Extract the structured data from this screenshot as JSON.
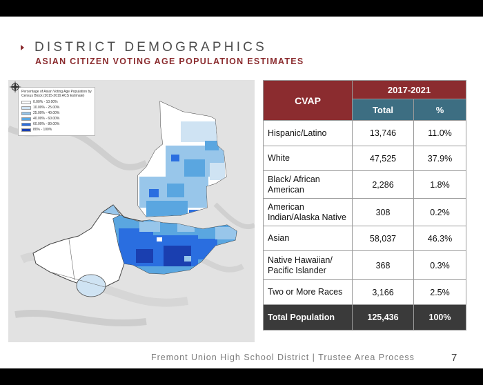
{
  "slide": {
    "title": "DISTRICT DEMOGRAPHICS",
    "subtitle": "ASIAN CITIZEN VOTING AGE POPULATION ESTIMATES"
  },
  "map": {
    "legend_title": "Percentage of Asian Voting Age Population by Census Block (2015-2019 ACS Estimate)",
    "legend_items": [
      {
        "label": "0.00% - 10.00%",
        "color": "#ffffff"
      },
      {
        "label": "10.00% - 25.00%",
        "color": "#cfe3f3"
      },
      {
        "label": "25.00% - 40.00%",
        "color": "#98c6ea"
      },
      {
        "label": "40.00% - 60.00%",
        "color": "#5aa6e0"
      },
      {
        "label": "60.00% - 80.00%",
        "color": "#2a6ee0"
      },
      {
        "label": "80% - 100%",
        "color": "#1a3fb0"
      }
    ]
  },
  "table": {
    "header": {
      "group": "CVAP",
      "period": "2017-2021",
      "total": "Total",
      "pct": "%"
    },
    "rows": [
      {
        "group": "Hispanic/Latino",
        "total": "13,746",
        "pct": "11.0%"
      },
      {
        "group": "White",
        "total": "47,525",
        "pct": "37.9%"
      },
      {
        "group": "Black/ African American",
        "total": "2,286",
        "pct": "1.8%"
      },
      {
        "group": "American Indian/Alaska Native",
        "total": "308",
        "pct": "0.2%"
      },
      {
        "group": "Asian",
        "total": "58,037",
        "pct": "46.3%"
      },
      {
        "group": "Native Hawaiian/ Pacific Islander",
        "total": "368",
        "pct": "0.3%"
      },
      {
        "group": "Two or More Races",
        "total": "3,166",
        "pct": "2.5%"
      }
    ],
    "total_row": {
      "group": "Total Population",
      "total": "125,436",
      "pct": "100%"
    }
  },
  "footer": {
    "text": "Fremont Union High School District | Trustee Area Process",
    "page_number": "7"
  },
  "colors": {
    "accent": "#8b2c2f",
    "teal": "#3d6e82",
    "total_row": "#3a3a3a"
  }
}
